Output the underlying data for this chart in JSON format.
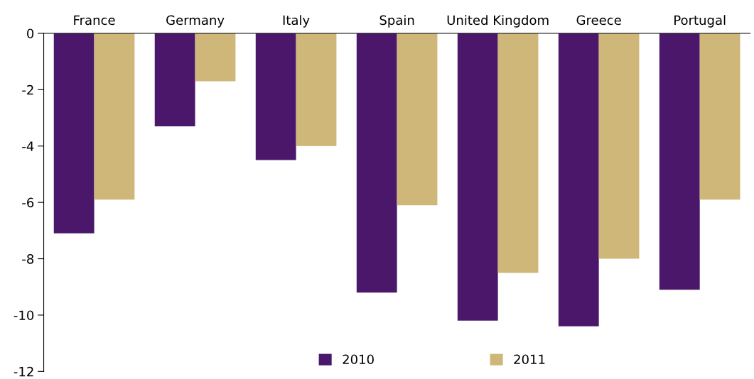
{
  "chart_data": {
    "type": "bar",
    "categories": [
      "France",
      "Germany",
      "Italy",
      "Spain",
      "United Kingdom",
      "Greece",
      "Portugal"
    ],
    "series": [
      {
        "name": "2010",
        "color": "#4a176a",
        "values": [
          -7.1,
          -3.3,
          -4.5,
          -9.2,
          -10.2,
          -10.4,
          -9.1
        ]
      },
      {
        "name": "2011",
        "color": "#cfb779",
        "values": [
          -5.9,
          -1.7,
          -4.0,
          -6.1,
          -8.5,
          -8.0,
          -5.9
        ]
      }
    ],
    "ylim": [
      -12,
      0
    ],
    "yticks": [
      -12,
      -10,
      -8,
      -6,
      -4,
      -2,
      0
    ],
    "grid": false,
    "legend": "bottom"
  }
}
